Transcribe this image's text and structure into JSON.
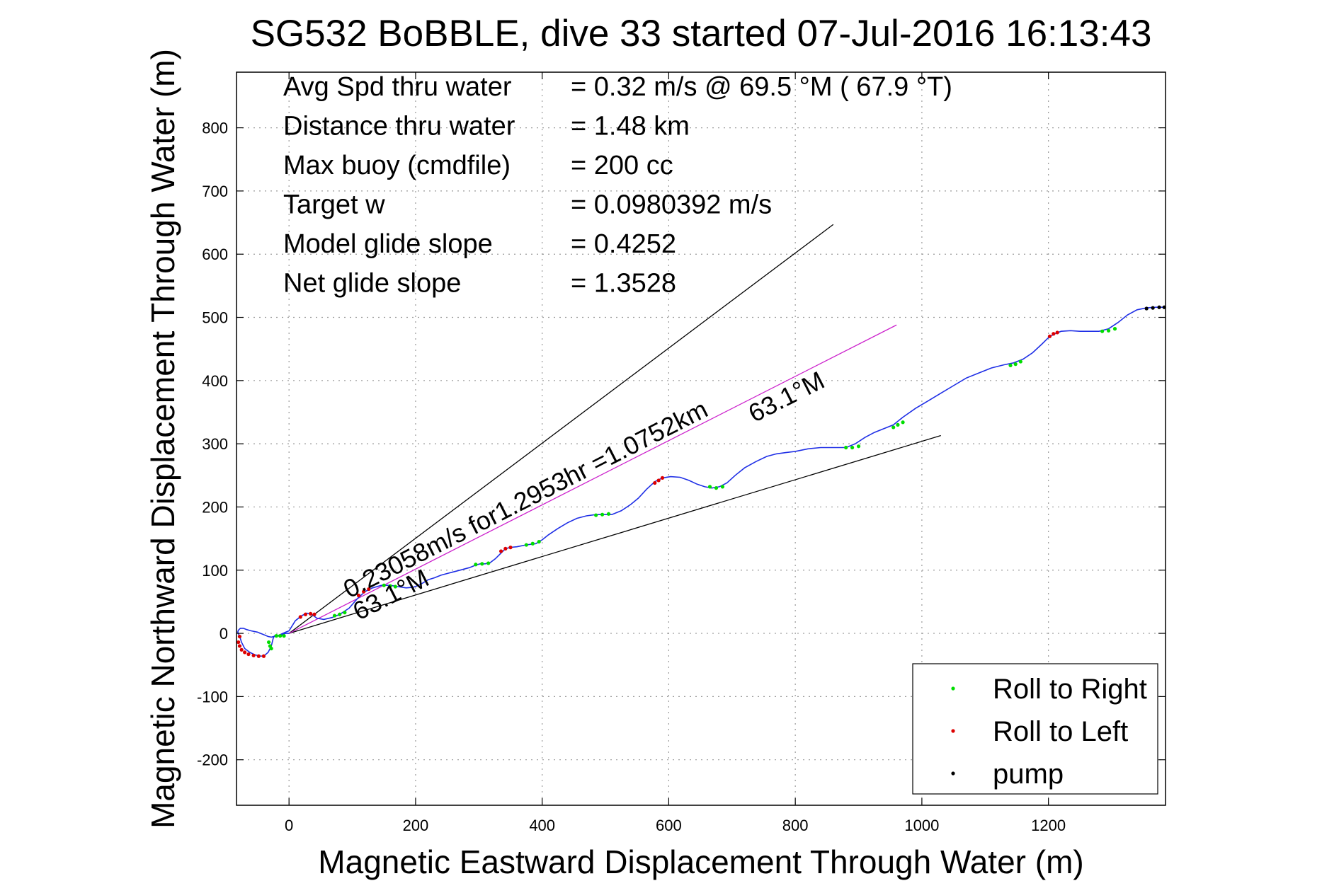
{
  "chart_data": {
    "type": "line",
    "title": "SG532 BoBBLE, dive 33 started 07-Jul-2016 16:13:43",
    "xlabel": "Magnetic Eastward Displacement Through Water (m)",
    "ylabel": "Magnetic Northward Displacement Through Water (m)",
    "xlim": [
      -83,
      1385
    ],
    "ylim": [
      -272,
      888
    ],
    "xticks": [
      0,
      200,
      400,
      600,
      800,
      1000,
      1200
    ],
    "yticks": [
      -200,
      -100,
      0,
      100,
      200,
      300,
      400,
      500,
      600,
      700,
      800
    ],
    "grid": true,
    "legend_position": "bottom-right",
    "stats": [
      {
        "label": "Avg Spd thru water",
        "value": "=  0.32 m/s @  69.5 °M ( 67.9 °T)"
      },
      {
        "label": "Distance thru water",
        "value": "=  1.48 km"
      },
      {
        "label": "Max buoy (cmdfile)",
        "value": "= 200 cc"
      },
      {
        "label": "Target w",
        "value": "= 0.0980392 m/s"
      },
      {
        "label": "Model glide slope",
        "value": "= 0.4252"
      },
      {
        "label": "Net glide slope",
        "value": "= 1.3528"
      }
    ],
    "annotations": [
      {
        "text": "0.23058m/s for1.2953hr =1.0752km",
        "x": 95,
        "y": 55,
        "angle_deg": 27
      },
      {
        "text": "63.1°M",
        "x": 110,
        "y": 20,
        "angle_deg": 27
      },
      {
        "text": "63.1°M",
        "x": 735,
        "y": 333,
        "angle_deg": 27
      }
    ],
    "reference_lines": [
      {
        "name": "upper glide bound",
        "color": "#000000",
        "x": [
          0,
          860
        ],
        "y": [
          0,
          647
        ]
      },
      {
        "name": "lower glide bound",
        "color": "#000000",
        "x": [
          0,
          1030
        ],
        "y": [
          0,
          313
        ]
      },
      {
        "name": "mean course",
        "color": "#cc22cc",
        "x": [
          0,
          960
        ],
        "y": [
          0,
          488
        ]
      }
    ],
    "series": [
      {
        "color": "#1f2fe6",
        "x": [
          0,
          -6,
          -12,
          -18,
          -23,
          -25,
          -28,
          -33,
          -40,
          -46,
          -54,
          -62,
          -70,
          -75,
          -78,
          -81,
          -80,
          -77,
          -74,
          -72,
          -67,
          -60,
          -50,
          -40,
          -33,
          -28,
          -24,
          -18,
          -12,
          -5,
          0,
          10,
          20,
          28,
          36,
          44,
          55,
          68,
          80,
          95,
          108,
          120,
          132,
          146,
          160,
          172,
          185,
          196,
          205,
          212,
          220,
          230,
          240,
          255,
          270,
          285,
          295,
          302,
          310,
          318,
          326,
          334,
          342,
          350,
          360,
          375,
          390,
          400,
          410,
          425,
          440,
          455,
          470,
          485,
          498,
          510,
          525,
          540,
          552,
          565,
          578,
          590,
          603,
          618,
          632,
          645,
          657,
          668,
          680,
          692,
          705,
          720,
          738,
          755,
          770,
          785,
          800,
          820,
          840,
          860,
          880,
          895,
          910,
          925,
          940,
          955,
          970,
          990,
          1010,
          1030,
          1050,
          1070,
          1090,
          1110,
          1130,
          1145,
          1160,
          1175,
          1190,
          1200,
          1210,
          1220,
          1235,
          1250,
          1265,
          1280,
          1295,
          1310,
          1325,
          1340,
          1355,
          1370,
          1385
        ],
        "y": [
          0,
          0,
          -3,
          -4,
          -4,
          -8,
          -20,
          -30,
          -36,
          -36,
          -34,
          -30,
          -24,
          -14,
          -5,
          2,
          5,
          8,
          8,
          8,
          6,
          4,
          2,
          -2,
          -5,
          -6,
          -5,
          -4,
          -1,
          2,
          4,
          20,
          28,
          32,
          30,
          24,
          22,
          25,
          30,
          40,
          55,
          66,
          72,
          76,
          76,
          74,
          72,
          73,
          76,
          80,
          85,
          88,
          92,
          96,
          100,
          104,
          108,
          110,
          110,
          112,
          118,
          126,
          134,
          136,
          137,
          140,
          142,
          148,
          156,
          166,
          175,
          182,
          186,
          188,
          188,
          188,
          194,
          204,
          214,
          228,
          240,
          246,
          248,
          247,
          242,
          236,
          232,
          230,
          232,
          238,
          250,
          262,
          272,
          280,
          284,
          286,
          288,
          292,
          294,
          294,
          294,
          300,
          310,
          318,
          324,
          330,
          342,
          356,
          368,
          380,
          392,
          404,
          412,
          420,
          425,
          428,
          434,
          444,
          458,
          468,
          474,
          478,
          479,
          478,
          478,
          478,
          482,
          492,
          504,
          512,
          515,
          516,
          516
        ]
      },
      {
        "name": "Roll to Right",
        "color": "#00dd00",
        "x": [
          -32,
          -30,
          -28,
          -20,
          -14,
          -8,
          72,
          80,
          88,
          150,
          160,
          168,
          295,
          305,
          315,
          375,
          385,
          395,
          485,
          495,
          505,
          665,
          675,
          685,
          880,
          890,
          900,
          955,
          962,
          970,
          1140,
          1148,
          1156,
          1285,
          1295,
          1305
        ],
        "y": [
          -14,
          -20,
          -24,
          -4,
          -4,
          -4,
          28,
          30,
          33,
          76,
          75,
          74,
          109,
          110,
          111,
          140,
          142,
          145,
          187,
          188,
          189,
          232,
          230,
          232,
          294,
          294,
          296,
          326,
          330,
          334,
          424,
          426,
          430,
          478,
          479,
          482
        ]
      },
      {
        "name": "Roll to Left",
        "color": "#dd0000",
        "x": [
          -78,
          -80,
          -78,
          -75,
          -70,
          -64,
          -56,
          -48,
          -40,
          18,
          26,
          34,
          40,
          110,
          118,
          126,
          335,
          342,
          350,
          578,
          584,
          590,
          1202,
          1208,
          1214
        ],
        "y": [
          -5,
          -14,
          -20,
          -26,
          -30,
          -33,
          -35,
          -36,
          -36,
          26,
          30,
          31,
          30,
          60,
          66,
          70,
          130,
          134,
          136,
          238,
          242,
          246,
          470,
          474,
          476
        ]
      },
      {
        "name": "pump",
        "color": "#000000",
        "x": [
          1355,
          1365,
          1375,
          1383
        ],
        "y": [
          514,
          515,
          516,
          516
        ]
      }
    ]
  }
}
